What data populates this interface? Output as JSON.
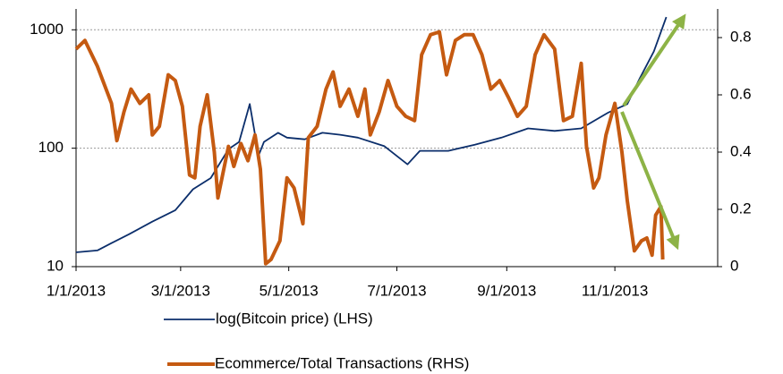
{
  "chart_data": {
    "type": "line",
    "xlim": [
      "2013-01-01",
      "2013-12-29"
    ],
    "xticks": [
      {
        "value": "2013-01-01",
        "label": "1/1/2013"
      },
      {
        "value": "2013-03-01",
        "label": "3/1/2013"
      },
      {
        "value": "2013-05-01",
        "label": "5/1/2013"
      },
      {
        "value": "2013-07-01",
        "label": "7/1/2013"
      },
      {
        "value": "2013-09-01",
        "label": "9/1/2013"
      },
      {
        "value": "2013-11-01",
        "label": "11/1/2013"
      }
    ],
    "ylim": [
      10,
      1500
    ],
    "yscale": "log",
    "yticks": [
      10,
      100,
      1000
    ],
    "y2lim": [
      0,
      0.9
    ],
    "y2ticks": [
      0,
      0.2,
      0.4,
      0.6,
      0.8
    ],
    "grid": true,
    "legend": "bottom",
    "series": [
      {
        "name": "log(Bitcoin price) (LHS)",
        "color": "#0b2e6b",
        "x": [
          "2013-01-01",
          "2013-01-13",
          "2013-01-21",
          "2013-01-31",
          "2013-02-13",
          "2013-02-26",
          "2013-03-08",
          "2013-03-18",
          "2013-03-28",
          "2013-04-03",
          "2013-04-09",
          "2013-04-14",
          "2013-04-17",
          "2013-04-25",
          "2013-04-30",
          "2013-05-10",
          "2013-05-20",
          "2013-05-30",
          "2013-06-09",
          "2013-06-24",
          "2013-07-07",
          "2013-07-14",
          "2013-07-30",
          "2013-08-14",
          "2013-08-29",
          "2013-09-13",
          "2013-09-28",
          "2013-10-13",
          "2013-10-28",
          "2013-11-08",
          "2013-11-15",
          "2013-11-23",
          "2013-11-30"
        ],
        "values": [
          13.2,
          13.7,
          15.8,
          18.8,
          24,
          30,
          45,
          56,
          98,
          113,
          236,
          87,
          113,
          135,
          123,
          119,
          135,
          130,
          123,
          104,
          73,
          95,
          95,
          107,
          123,
          147,
          140,
          147,
          199,
          236,
          388,
          658,
          1280
        ]
      },
      {
        "name": "Ecommerce/Total Transactions (RHS)",
        "color": "#c55a11",
        "axis": "y2",
        "x": [
          "2013-01-01",
          "2013-01-06",
          "2013-01-13",
          "2013-01-21",
          "2013-01-24",
          "2013-01-28",
          "2013-02-01",
          "2013-02-06",
          "2013-02-11",
          "2013-02-13",
          "2013-02-17",
          "2013-02-22",
          "2013-02-26",
          "2013-03-02",
          "2013-03-06",
          "2013-03-09",
          "2013-03-12",
          "2013-03-16",
          "2013-03-20",
          "2013-03-22",
          "2013-03-28",
          "2013-03-31",
          "2013-04-04",
          "2013-04-08",
          "2013-04-12",
          "2013-04-15",
          "2013-04-18",
          "2013-04-21",
          "2013-04-26",
          "2013-04-30",
          "2013-05-04",
          "2013-05-09",
          "2013-05-12",
          "2013-05-17",
          "2013-05-22",
          "2013-05-26",
          "2013-05-30",
          "2013-06-04",
          "2013-06-09",
          "2013-06-13",
          "2013-06-16",
          "2013-06-21",
          "2013-06-26",
          "2013-07-01",
          "2013-07-06",
          "2013-07-11",
          "2013-07-15",
          "2013-07-20",
          "2013-07-25",
          "2013-07-29",
          "2013-08-03",
          "2013-08-08",
          "2013-08-13",
          "2013-08-18",
          "2013-08-23",
          "2013-08-28",
          "2013-09-02",
          "2013-09-07",
          "2013-09-12",
          "2013-09-17",
          "2013-09-22",
          "2013-09-28",
          "2013-10-03",
          "2013-10-08",
          "2013-10-13",
          "2013-10-16",
          "2013-10-20",
          "2013-10-23",
          "2013-10-27",
          "2013-11-01",
          "2013-11-05",
          "2013-11-08",
          "2013-11-12",
          "2013-11-16",
          "2013-11-19",
          "2013-11-22",
          "2013-11-24",
          "2013-11-27",
          "2013-11-28"
        ],
        "values": [
          0.76,
          0.79,
          0.7,
          0.57,
          0.44,
          0.54,
          0.62,
          0.57,
          0.6,
          0.46,
          0.49,
          0.67,
          0.65,
          0.56,
          0.32,
          0.31,
          0.49,
          0.6,
          0.4,
          0.24,
          0.42,
          0.35,
          0.43,
          0.37,
          0.46,
          0.34,
          0.01,
          0.025,
          0.09,
          0.31,
          0.275,
          0.15,
          0.45,
          0.49,
          0.62,
          0.68,
          0.56,
          0.62,
          0.525,
          0.62,
          0.46,
          0.54,
          0.65,
          0.56,
          0.525,
          0.51,
          0.74,
          0.81,
          0.82,
          0.67,
          0.79,
          0.81,
          0.81,
          0.74,
          0.62,
          0.65,
          0.59,
          0.525,
          0.56,
          0.74,
          0.81,
          0.76,
          0.51,
          0.525,
          0.71,
          0.42,
          0.275,
          0.31,
          0.46,
          0.57,
          0.4,
          0.23,
          0.055,
          0.09,
          0.1,
          0.04,
          0.18,
          0.21,
          0.025
        ]
      }
    ]
  }
}
